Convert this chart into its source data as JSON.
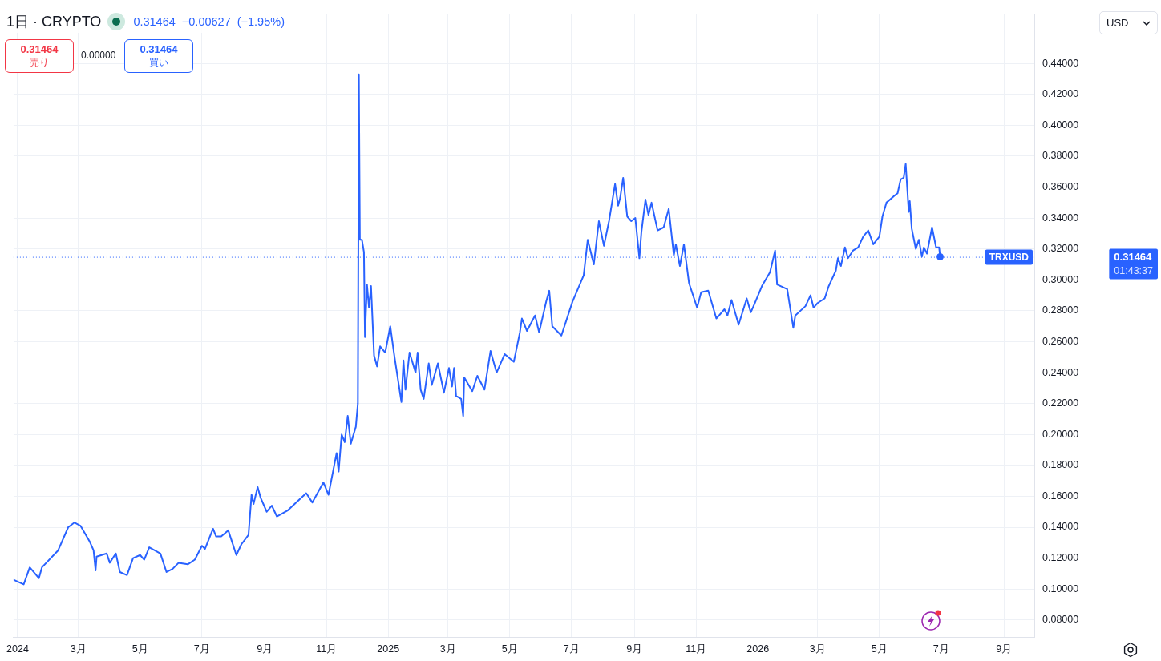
{
  "chart_data": {
    "type": "line",
    "title": "1日 · CRYPTO",
    "subtitle": "0.31464 −0.00627 (−1.95%)",
    "x": [
      "2023-12-28",
      "2024-01-07",
      "2024-01-13",
      "2024-01-22",
      "2024-01-25",
      "2024-02-10",
      "2024-02-20",
      "2024-02-26",
      "2024-03-03",
      "2024-03-12",
      "2024-03-16",
      "2024-03-18",
      "2024-03-19",
      "2024-03-29",
      "2024-04-01",
      "2024-04-07",
      "2024-04-11",
      "2024-04-18",
      "2024-04-24",
      "2024-05-01",
      "2024-05-05",
      "2024-05-10",
      "2024-05-21",
      "2024-05-27",
      "2024-06-02",
      "2024-06-08",
      "2024-06-17",
      "2024-06-24",
      "2024-07-01",
      "2024-07-04",
      "2024-07-12",
      "2024-07-15",
      "2024-07-20",
      "2024-07-27",
      "2024-08-04",
      "2024-08-09",
      "2024-08-16",
      "2024-08-19",
      "2024-08-21",
      "2024-08-25",
      "2024-08-28",
      "2024-09-03",
      "2024-09-08",
      "2024-09-13",
      "2024-09-24",
      "2024-10-02",
      "2024-10-12",
      "2024-10-18",
      "2024-10-29",
      "2024-11-03",
      "2024-11-11",
      "2024-11-13",
      "2024-11-16",
      "2024-11-19",
      "2024-11-22",
      "2024-11-25",
      "2024-11-30",
      "2024-12-02",
      "2024-12-03",
      "2024-12-04",
      "2024-12-06",
      "2024-12-08",
      "2024-12-09",
      "2024-12-11",
      "2024-12-13",
      "2024-12-15",
      "2024-12-18",
      "2024-12-21",
      "2024-12-24",
      "2024-12-29",
      "2025-01-03",
      "2025-01-07",
      "2025-01-14",
      "2025-01-16",
      "2025-01-18",
      "2025-01-22",
      "2025-01-28",
      "2025-01-30",
      "2025-02-02",
      "2025-02-05",
      "2025-02-10",
      "2025-02-13",
      "2025-02-19",
      "2025-02-25",
      "2025-03-02",
      "2025-03-05",
      "2025-03-07",
      "2025-03-09",
      "2025-03-14",
      "2025-03-16",
      "2025-03-17",
      "2025-03-25",
      "2025-03-30",
      "2025-04-06",
      "2025-04-12",
      "2025-04-18",
      "2025-04-26",
      "2025-05-05",
      "2025-05-11",
      "2025-05-13",
      "2025-05-18",
      "2025-05-26",
      "2025-05-30",
      "2025-06-06",
      "2025-06-09",
      "2025-06-12",
      "2025-06-21",
      "2025-07-02",
      "2025-07-13",
      "2025-07-17",
      "2025-07-23",
      "2025-07-28",
      "2025-08-02",
      "2025-08-07",
      "2025-08-13",
      "2025-08-16",
      "2025-08-18",
      "2025-08-21",
      "2025-08-25",
      "2025-08-29",
      "2025-09-02",
      "2025-09-06",
      "2025-09-08",
      "2025-09-12",
      "2025-09-15",
      "2025-09-18",
      "2025-09-24",
      "2025-09-30",
      "2025-10-05",
      "2025-10-10",
      "2025-10-12",
      "2025-10-16",
      "2025-10-20",
      "2025-10-25",
      "2025-11-02",
      "2025-11-06",
      "2025-11-13",
      "2025-11-21",
      "2025-11-29",
      "2025-12-02",
      "2025-12-06",
      "2025-12-13",
      "2025-12-21",
      "2025-12-25",
      "2025-12-29",
      "2026-01-05",
      "2026-01-13",
      "2026-01-18",
      "2026-01-20",
      "2026-01-30",
      "2026-02-05",
      "2026-02-07",
      "2026-02-17",
      "2026-02-22",
      "2026-02-25",
      "2026-03-01",
      "2026-03-08",
      "2026-03-12",
      "2026-03-19",
      "2026-03-21",
      "2026-03-24",
      "2026-03-28",
      "2026-03-31",
      "2026-04-05",
      "2026-04-10",
      "2026-04-15",
      "2026-04-20",
      "2026-04-25",
      "2026-05-01",
      "2026-05-04",
      "2026-05-08",
      "2026-05-15",
      "2026-05-19",
      "2026-05-22",
      "2026-05-25",
      "2026-05-27",
      "2026-05-30",
      "2026-05-31",
      "2026-06-02",
      "2026-06-06",
      "2026-06-09",
      "2026-06-12",
      "2026-06-14",
      "2026-06-17",
      "2026-06-22",
      "2026-06-26",
      "2026-06-29",
      "2026-06-30"
    ],
    "series": [
      {
        "color": "#2962ff",
        "values": [
          0.106,
          0.103,
          0.114,
          0.107,
          0.114,
          0.125,
          0.14,
          0.143,
          0.141,
          0.131,
          0.125,
          0.112,
          0.121,
          0.123,
          0.117,
          0.123,
          0.111,
          0.109,
          0.12,
          0.122,
          0.119,
          0.127,
          0.123,
          0.111,
          0.113,
          0.117,
          0.116,
          0.119,
          0.128,
          0.126,
          0.139,
          0.134,
          0.134,
          0.138,
          0.122,
          0.129,
          0.135,
          0.161,
          0.155,
          0.166,
          0.159,
          0.15,
          0.154,
          0.147,
          0.151,
          0.156,
          0.162,
          0.156,
          0.169,
          0.161,
          0.188,
          0.176,
          0.2,
          0.195,
          0.212,
          0.194,
          0.205,
          0.22,
          0.433,
          0.326,
          0.326,
          0.318,
          0.263,
          0.297,
          0.282,
          0.296,
          0.251,
          0.244,
          0.257,
          0.253,
          0.27,
          0.251,
          0.221,
          0.248,
          0.229,
          0.253,
          0.24,
          0.253,
          0.229,
          0.223,
          0.246,
          0.232,
          0.246,
          0.227,
          0.243,
          0.231,
          0.243,
          0.225,
          0.223,
          0.212,
          0.237,
          0.228,
          0.238,
          0.229,
          0.254,
          0.24,
          0.252,
          0.247,
          0.266,
          0.275,
          0.267,
          0.277,
          0.266,
          0.286,
          0.293,
          0.27,
          0.264,
          0.286,
          0.303,
          0.326,
          0.31,
          0.338,
          0.322,
          0.338,
          0.362,
          0.348,
          0.353,
          0.366,
          0.341,
          0.338,
          0.34,
          0.314,
          0.331,
          0.352,
          0.342,
          0.35,
          0.332,
          0.334,
          0.346,
          0.316,
          0.323,
          0.309,
          0.323,
          0.298,
          0.282,
          0.292,
          0.293,
          0.275,
          0.281,
          0.277,
          0.287,
          0.271,
          0.288,
          0.279,
          0.285,
          0.296,
          0.305,
          0.319,
          0.297,
          0.294,
          0.269,
          0.277,
          0.283,
          0.29,
          0.282,
          0.285,
          0.288,
          0.296,
          0.306,
          0.314,
          0.309,
          0.321,
          0.314,
          0.319,
          0.321,
          0.328,
          0.332,
          0.323,
          0.328,
          0.341,
          0.35,
          0.354,
          0.356,
          0.365,
          0.366,
          0.375,
          0.344,
          0.351,
          0.333,
          0.32,
          0.326,
          0.315,
          0.321,
          0.317,
          0.334,
          0.321,
          0.321,
          0.315
        ]
      },
      {
        "type": "scatter",
        "color": "#2962ff",
        "x": [
          "2026-06-30"
        ],
        "values": [
          0.315
        ]
      }
    ],
    "xlim": [
      "2023-12-28",
      "2026-10-01"
    ],
    "xticks": [
      {
        "value": "2024-01-01",
        "label": "2024"
      },
      {
        "value": "2024-03-01",
        "label": "3月"
      },
      {
        "value": "2024-05-01",
        "label": "5月"
      },
      {
        "value": "2024-07-01",
        "label": "7月"
      },
      {
        "value": "2024-09-01",
        "label": "9月"
      },
      {
        "value": "2024-11-01",
        "label": "11月"
      },
      {
        "value": "2025-01-01",
        "label": "2025"
      },
      {
        "value": "2025-03-01",
        "label": "3月"
      },
      {
        "value": "2025-05-01",
        "label": "5月"
      },
      {
        "value": "2025-07-01",
        "label": "7月"
      },
      {
        "value": "2025-09-01",
        "label": "9月"
      },
      {
        "value": "2025-11-01",
        "label": "11月"
      },
      {
        "value": "2026-01-01",
        "label": "2026"
      },
      {
        "value": "2026-03-01",
        "label": "3月"
      },
      {
        "value": "2026-05-01",
        "label": "5月"
      },
      {
        "value": "2026-07-01",
        "label": "7月"
      },
      {
        "value": "2026-09-01",
        "label": "9月"
      }
    ],
    "ylim": [
      0.069,
      0.472
    ],
    "yticks": [
      {
        "value": 0.08,
        "label": "0.08000"
      },
      {
        "value": 0.1,
        "label": "0.10000"
      },
      {
        "value": 0.12,
        "label": "0.12000"
      },
      {
        "value": 0.14,
        "label": "0.14000"
      },
      {
        "value": 0.16,
        "label": "0.16000"
      },
      {
        "value": 0.18,
        "label": "0.18000"
      },
      {
        "value": 0.2,
        "label": "0.20000"
      },
      {
        "value": 0.22,
        "label": "0.22000"
      },
      {
        "value": 0.24,
        "label": "0.24000"
      },
      {
        "value": 0.26,
        "label": "0.26000"
      },
      {
        "value": 0.28,
        "label": "0.28000"
      },
      {
        "value": 0.3,
        "label": "0.30000"
      },
      {
        "value": 0.32,
        "label": "0.32000"
      },
      {
        "value": 0.34,
        "label": "0.34000"
      },
      {
        "value": 0.36,
        "label": "0.36000"
      },
      {
        "value": 0.38,
        "label": "0.38000"
      },
      {
        "value": 0.4,
        "label": "0.40000"
      },
      {
        "value": 0.42,
        "label": "0.42000"
      },
      {
        "value": 0.44,
        "label": "0.44000"
      }
    ],
    "grid": true,
    "ref_lines": [
      {
        "axis": "y",
        "value": 0.31464,
        "label": "TRXUSD",
        "color": "#2962ff",
        "line_style": "dotted"
      }
    ],
    "annotations": [
      "0.31464",
      "売り",
      "0.00000",
      "0.31464",
      "買い",
      "USD",
      "0.31464",
      "01:43:37"
    ]
  }
}
